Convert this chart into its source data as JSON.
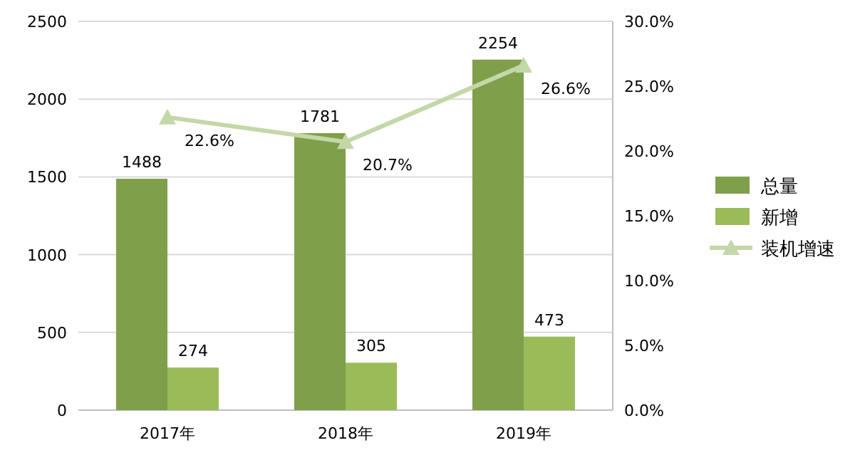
{
  "chart_data": {
    "type": "bar",
    "categories": [
      "2017年",
      "2018年",
      "2019年"
    ],
    "series": [
      {
        "name": "总量",
        "color": "#7f9f4a",
        "values": [
          1488,
          1781,
          2254
        ]
      },
      {
        "name": "新增",
        "color": "#9bbb59",
        "values": [
          274,
          305,
          473
        ]
      },
      {
        "name": "装机增速",
        "type": "line",
        "axis": "y2",
        "color": "#c4d7a8",
        "marker": "triangle",
        "values": [
          22.6,
          20.7,
          26.6
        ],
        "value_labels": [
          "22.6%",
          "20.7%",
          "26.6%"
        ]
      }
    ],
    "ylim": [
      0,
      2500
    ],
    "yticks": [
      0,
      500,
      1000,
      1500,
      2000,
      2500
    ],
    "y2lim": [
      0,
      30
    ],
    "y2ticks": [
      {
        "value": 0,
        "label": "0.0%"
      },
      {
        "value": 5,
        "label": "5.0%"
      },
      {
        "value": 10,
        "label": "10.0%"
      },
      {
        "value": 15,
        "label": "15.0%"
      },
      {
        "value": 20,
        "label": "20.0%"
      },
      {
        "value": 25,
        "label": "25.0%"
      },
      {
        "value": 30,
        "label": "30.0%"
      }
    ],
    "grid": "y",
    "legend": "right",
    "data_labels": true
  }
}
